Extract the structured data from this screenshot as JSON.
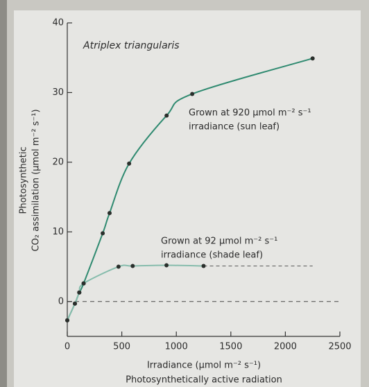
{
  "chart_data": {
    "type": "line",
    "title": "Atriplex triangularis",
    "x_label": [
      "Irradiance (μmol m⁻² s⁻¹)",
      "Photosynthetically active radiation"
    ],
    "y_label": [
      "Photosynthetic",
      "CO₂ assimilation (μmol m⁻² s⁻¹)"
    ],
    "xlim": [
      0,
      2500
    ],
    "xticks": [
      0,
      500,
      1000,
      1500,
      2000,
      2500
    ],
    "ylim": [
      -5,
      40
    ],
    "yticks": [
      0,
      10,
      20,
      30,
      40
    ],
    "series": [
      {
        "label": [
          "Grown at 920 μmol m⁻² s⁻¹",
          "irradiance (sun leaf)"
        ],
        "color": "#2f8a70",
        "x": [
          0,
          70,
          110,
          150,
          325,
          388,
          567,
          911,
          1146,
          2250
        ],
        "values": [
          -2.7,
          -0.3,
          1.3,
          2.6,
          9.8,
          12.7,
          19.8,
          26.7,
          29.8,
          34.9
        ]
      },
      {
        "label": [
          "Grown at 92 μmol m⁻² s⁻¹",
          "irradiance (shade leaf)"
        ],
        "color": "#86bcac",
        "x": [
          0,
          70,
          110,
          150,
          470,
          600,
          910,
          1250
        ],
        "values": [
          -2.7,
          -0.3,
          1.3,
          2.6,
          5.0,
          5.1,
          5.2,
          5.1
        ]
      }
    ]
  }
}
